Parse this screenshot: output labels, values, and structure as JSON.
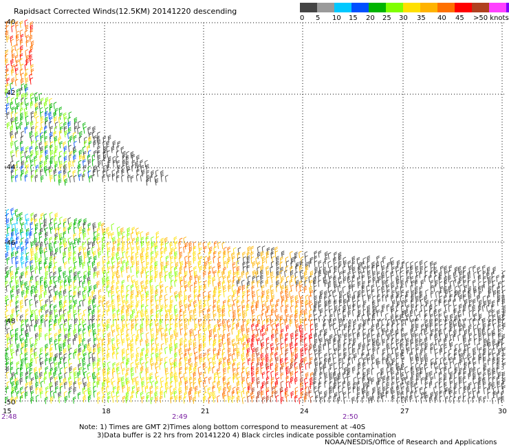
{
  "title": "Rapidsact Corrected Winds(12.5KM) 20141220 descending",
  "legend": {
    "colors": [
      "#444444",
      "#9a9a9a",
      "#00c8ff",
      "#0050ff",
      "#00b400",
      "#80ff00",
      "#ffe000",
      "#ffb300",
      "#ff7000",
      "#ff0000",
      "#b04020",
      "#ff40ff",
      "#8000ff"
    ],
    "labels": [
      "0",
      "5",
      "10",
      "15",
      "20",
      "25",
      "30",
      "35",
      "40",
      "45",
      ">50 knots"
    ]
  },
  "lat_labels": [
    "-40",
    "-42",
    "-44",
    "-46",
    "-48",
    "-50"
  ],
  "lon_labels": [
    "15",
    "18",
    "21",
    "24",
    "27",
    "30"
  ],
  "time_labels": [
    "2:48",
    "2:49",
    "2:50"
  ],
  "colors": {
    "time_label": "#7a1fa2",
    "grid": "#000000",
    "black_barb": "#000000"
  },
  "notes": {
    "line1": "Note: 1) Times are GMT 2)Times along bottom correspond to measurement at -40S",
    "line2": "3)Data buffer is 22 hrs from 20141220 4) Black circles indicate possible contamination"
  },
  "credit": "NOAA/NESDIS/Office of Research and Applications"
}
